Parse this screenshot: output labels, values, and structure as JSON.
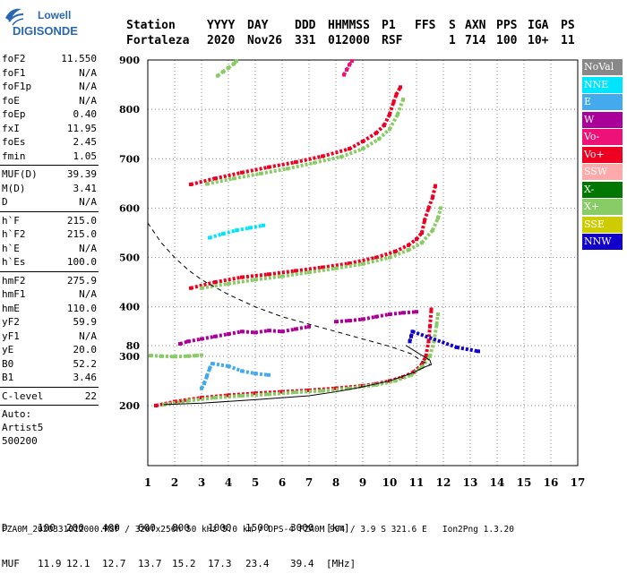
{
  "logo": {
    "line1": "Lowell",
    "line2": "DIGISONDE"
  },
  "header": {
    "labels": [
      "Station",
      "YYYY",
      "DAY",
      "DDD",
      "HHMMSS",
      "P1",
      "FFS",
      "S",
      "AXN",
      "PPS",
      "IGA",
      "PS"
    ],
    "values": [
      "Fortaleza",
      "2020",
      "Nov26",
      "331",
      "012000",
      "RSF",
      "1",
      "714",
      "100",
      "10+",
      "11"
    ]
  },
  "params": {
    "group1": [
      {
        "name": "foF2",
        "value": "11.550"
      },
      {
        "name": "foF1",
        "value": "N/A"
      },
      {
        "name": "foF1p",
        "value": "N/A"
      },
      {
        "name": "foE",
        "value": "N/A"
      },
      {
        "name": "foEp",
        "value": "0.40"
      },
      {
        "name": "fxI",
        "value": "11.95"
      },
      {
        "name": "foEs",
        "value": "2.45"
      },
      {
        "name": "fmin",
        "value": "1.05"
      }
    ],
    "group2": [
      {
        "name": "MUF(D)",
        "value": "39.39"
      },
      {
        "name": "M(D)",
        "value": "3.41"
      },
      {
        "name": "D",
        "value": "N/A"
      }
    ],
    "group3": [
      {
        "name": "h`F",
        "value": "215.0"
      },
      {
        "name": "h`F2",
        "value": "215.0"
      },
      {
        "name": "h`E",
        "value": "N/A"
      },
      {
        "name": "h`Es",
        "value": "100.0"
      }
    ],
    "group4": [
      {
        "name": "hmF2",
        "value": "275.9"
      },
      {
        "name": "hmF1",
        "value": "N/A"
      },
      {
        "name": "hmE",
        "value": "110.0"
      },
      {
        "name": "yF2",
        "value": "59.9"
      },
      {
        "name": "yF1",
        "value": "N/A"
      },
      {
        "name": "yE",
        "value": "20.0"
      },
      {
        "name": "B0",
        "value": "52.2"
      },
      {
        "name": "B1",
        "value": "3.46"
      }
    ],
    "group5": [
      {
        "name": "C-level",
        "value": "22"
      }
    ],
    "auto": [
      "Auto:",
      "Artist5",
      "500200"
    ]
  },
  "legend": [
    {
      "label": "NoVal",
      "color": "#888888"
    },
    {
      "label": "NNE",
      "color": "#00e5ff"
    },
    {
      "label": "E",
      "color": "#44aaee"
    },
    {
      "label": "W",
      "color": "#aa0099"
    },
    {
      "label": "Vo-",
      "color": "#ee1177"
    },
    {
      "label": "Vo+",
      "color": "#ee0022"
    },
    {
      "label": "SSW",
      "color": "#ffaaaa"
    },
    {
      "label": "X-",
      "color": "#007700"
    },
    {
      "label": "X+",
      "color": "#88cc66"
    },
    {
      "label": "SSE",
      "color": "#cccc00"
    },
    {
      "label": "NNW",
      "color": "#1100cc"
    }
  ],
  "chart_data": {
    "type": "scatter",
    "x_ticks": [
      "1",
      "2",
      "3",
      "4",
      "5",
      "6",
      "7",
      "8",
      "9",
      "10",
      "11",
      "12",
      "13",
      "14",
      "15",
      "16",
      "17"
    ],
    "y_ticks": [
      "80",
      "200",
      "300",
      "400",
      "500",
      "600",
      "700",
      "800",
      "900"
    ],
    "xlim": [
      1,
      17
    ],
    "y_scale": "segmented: 80-200 compressed, 200-900 linear",
    "grid": "dotted",
    "traces": [
      {
        "kind": "echo",
        "color": "#ee0022",
        "points": [
          [
            1.3,
            200
          ],
          [
            2,
            208
          ],
          [
            3,
            216
          ],
          [
            4,
            221
          ],
          [
            5,
            225
          ],
          [
            6,
            228
          ],
          [
            7,
            231
          ],
          [
            8,
            235
          ],
          [
            9,
            240
          ],
          [
            9.5,
            244
          ],
          [
            10,
            250
          ],
          [
            10.5,
            258
          ],
          [
            10.9,
            268
          ],
          [
            11.2,
            283
          ],
          [
            11.35,
            300
          ],
          [
            11.45,
            330
          ],
          [
            11.5,
            360
          ],
          [
            11.55,
            395
          ]
        ]
      },
      {
        "kind": "echo",
        "color": "#88cc66",
        "points": [
          [
            1.6,
            202
          ],
          [
            2.5,
            210
          ],
          [
            3.5,
            216
          ],
          [
            4.5,
            220
          ],
          [
            5.5,
            223
          ],
          [
            6.5,
            227
          ],
          [
            7.5,
            230
          ],
          [
            8.5,
            235
          ],
          [
            9.5,
            242
          ],
          [
            10.2,
            250
          ],
          [
            10.8,
            262
          ],
          [
            11.2,
            278
          ],
          [
            11.5,
            300
          ],
          [
            11.65,
            330
          ],
          [
            11.75,
            365
          ],
          [
            11.8,
            385
          ]
        ]
      },
      {
        "kind": "echo",
        "color": "#ee0022",
        "points": [
          [
            2.6,
            438
          ],
          [
            3.5,
            450
          ],
          [
            4.5,
            460
          ],
          [
            5.5,
            466
          ],
          [
            6.5,
            473
          ],
          [
            7.5,
            480
          ],
          [
            8.5,
            488
          ],
          [
            9.5,
            500
          ],
          [
            10.2,
            512
          ],
          [
            10.7,
            525
          ],
          [
            11,
            537
          ],
          [
            11.2,
            550
          ],
          [
            11.3,
            575
          ],
          [
            11.45,
            600
          ],
          [
            11.6,
            622
          ],
          [
            11.7,
            645
          ]
        ]
      },
      {
        "kind": "echo",
        "color": "#88cc66",
        "points": [
          [
            3,
            438
          ],
          [
            4,
            447
          ],
          [
            5,
            455
          ],
          [
            6,
            462
          ],
          [
            7,
            470
          ],
          [
            8,
            478
          ],
          [
            9,
            487
          ],
          [
            10,
            500
          ],
          [
            10.7,
            515
          ],
          [
            11.2,
            530
          ],
          [
            11.6,
            555
          ],
          [
            11.8,
            580
          ],
          [
            11.9,
            600
          ]
        ]
      },
      {
        "kind": "echo",
        "color": "#ee0022",
        "points": [
          [
            2.6,
            648
          ],
          [
            3.5,
            660
          ],
          [
            4.5,
            672
          ],
          [
            5.5,
            683
          ],
          [
            6.5,
            693
          ],
          [
            7.5,
            705
          ],
          [
            8.5,
            720
          ],
          [
            9,
            735
          ],
          [
            9.5,
            752
          ],
          [
            9.8,
            768
          ],
          [
            10,
            790
          ],
          [
            10.15,
            815
          ],
          [
            10.25,
            830
          ],
          [
            10.4,
            845
          ]
        ]
      },
      {
        "kind": "echo",
        "color": "#88cc66",
        "points": [
          [
            3.2,
            649
          ],
          [
            4.2,
            660
          ],
          [
            5.2,
            670
          ],
          [
            6.2,
            680
          ],
          [
            7.2,
            692
          ],
          [
            8.2,
            704
          ],
          [
            9,
            720
          ],
          [
            9.6,
            740
          ],
          [
            10,
            760
          ],
          [
            10.3,
            790
          ],
          [
            10.5,
            820
          ]
        ]
      },
      {
        "kind": "echo",
        "color": "#88cc66",
        "points": [
          [
            3.6,
            868
          ],
          [
            3.8,
            876
          ],
          [
            4,
            884
          ],
          [
            4.2,
            892
          ],
          [
            4.3,
            898
          ]
        ]
      },
      {
        "kind": "echo",
        "color": "#ee1177",
        "points": [
          [
            8.3,
            870
          ],
          [
            8.4,
            880
          ],
          [
            8.5,
            890
          ],
          [
            8.6,
            898
          ]
        ]
      },
      {
        "kind": "echo",
        "color": "#aa0099",
        "points": [
          [
            2.2,
            325
          ],
          [
            2.5,
            330
          ],
          [
            3,
            335
          ],
          [
            3.5,
            340
          ],
          [
            4,
            345
          ],
          [
            4.5,
            350
          ],
          [
            5,
            348
          ],
          [
            5.5,
            352
          ],
          [
            6,
            350
          ],
          [
            6.5,
            355
          ],
          [
            7,
            360
          ]
        ]
      },
      {
        "kind": "echo",
        "color": "#aa0099",
        "points": [
          [
            8,
            370
          ],
          [
            8.5,
            372
          ],
          [
            9,
            375
          ],
          [
            9.5,
            380
          ],
          [
            10,
            385
          ],
          [
            10.5,
            388
          ],
          [
            11,
            390
          ]
        ]
      },
      {
        "kind": "echo",
        "color": "#44aaee",
        "points": [
          [
            3,
            235
          ],
          [
            3.1,
            245
          ],
          [
            3.2,
            260
          ],
          [
            3.3,
            275
          ],
          [
            3.4,
            285
          ],
          [
            4,
            280
          ],
          [
            4.5,
            270
          ],
          [
            5,
            265
          ],
          [
            5.5,
            262
          ]
        ]
      },
      {
        "kind": "echo",
        "color": "#00e5ff",
        "points": [
          [
            3.3,
            540
          ],
          [
            3.8,
            548
          ],
          [
            4.3,
            555
          ],
          [
            4.8,
            560
          ],
          [
            5.3,
            565
          ]
        ]
      },
      {
        "kind": "echo",
        "color": "#1100cc",
        "points": [
          [
            10.75,
            330
          ],
          [
            10.8,
            340
          ],
          [
            10.85,
            350
          ],
          [
            12.5,
            318
          ],
          [
            13.3,
            310
          ]
        ]
      },
      {
        "kind": "echo",
        "color": "#88cc66",
        "points": [
          [
            1.1,
            100
          ],
          [
            1.5,
            101
          ],
          [
            2,
            102
          ],
          [
            2.5,
            101
          ],
          [
            2.8,
            100
          ],
          [
            3,
            99
          ]
        ]
      },
      {
        "kind": "profile",
        "style": "solid",
        "points": [
          [
            1.6,
            198
          ],
          [
            3,
            205
          ],
          [
            5,
            212
          ],
          [
            7,
            220
          ],
          [
            8,
            228
          ],
          [
            9,
            238
          ],
          [
            10,
            250
          ],
          [
            10.8,
            265
          ],
          [
            11.3,
            278
          ],
          [
            11.55,
            283
          ],
          [
            11.5,
            292
          ],
          [
            11.1,
            305
          ],
          [
            10.6,
            322
          ]
        ]
      },
      {
        "kind": "profile",
        "style": "dashed",
        "points": [
          [
            1,
            570
          ],
          [
            1.5,
            530
          ],
          [
            2,
            500
          ],
          [
            2.5,
            475
          ],
          [
            3,
            455
          ],
          [
            3.5,
            440
          ],
          [
            4,
            425
          ],
          [
            5,
            400
          ],
          [
            6,
            380
          ],
          [
            7,
            365
          ],
          [
            8,
            350
          ],
          [
            9,
            335
          ],
          [
            10,
            320
          ],
          [
            10.8,
            305
          ],
          [
            11.2,
            290
          ],
          [
            11.5,
            283
          ]
        ]
      }
    ]
  },
  "bottom": {
    "d_row": [
      "D",
      "100",
      "200",
      "400",
      "600",
      "800",
      "1000",
      "1500",
      "3000",
      "[km]"
    ],
    "muf_row": [
      "MUF",
      "11.9",
      "12.1",
      "12.7",
      "13.7",
      "15.2",
      "17.3",
      "23.4",
      "39.4",
      "[MHz]"
    ]
  },
  "footer": {
    "text": "FZA0M_2020331012000.RSF / 320fx256h 50 kHz 5.0 km / DPS-4 FZA0M 904 / 3.9 S 321.6 E",
    "version": "Ion2Png 1.3.20"
  }
}
